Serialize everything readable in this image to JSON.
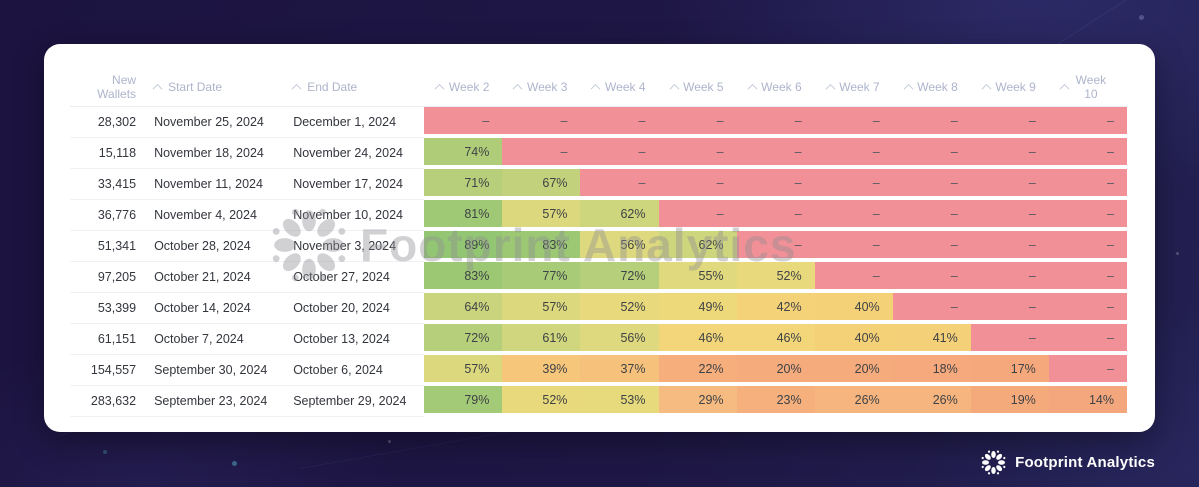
{
  "watermark": {
    "label": "Footprint Analytics",
    "icon": "footprint-starburst-icon"
  },
  "footer_brand": {
    "label": "Footprint Analytics",
    "icon": "footprint-starburst-icon"
  },
  "theme": {
    "empty_cell_color": "#f19096",
    "header_text_color": "#aeb4cb",
    "card_background": "#ffffff",
    "page_background": "#1e1745"
  },
  "table": {
    "dash": "–",
    "percent_suffix": "%",
    "columns": [
      {
        "label": "New Wallets",
        "kind": "wallets",
        "sortable": false
      },
      {
        "label": "Start Date",
        "kind": "date",
        "sortable": true
      },
      {
        "label": "End Date",
        "kind": "date",
        "sortable": true
      },
      {
        "label": "Week 2",
        "kind": "week",
        "sortable": true
      },
      {
        "label": "Week 3",
        "kind": "week",
        "sortable": true
      },
      {
        "label": "Week 4",
        "kind": "week",
        "sortable": true
      },
      {
        "label": "Week 5",
        "kind": "week",
        "sortable": true
      },
      {
        "label": "Week 6",
        "kind": "week",
        "sortable": true
      },
      {
        "label": "Week 7",
        "kind": "week",
        "sortable": true
      },
      {
        "label": "Week 8",
        "kind": "week",
        "sortable": true
      },
      {
        "label": "Week 9",
        "kind": "week",
        "sortable": true
      },
      {
        "label": "Week 10",
        "kind": "week",
        "sortable": true
      }
    ]
  },
  "chart_data": {
    "type": "heatmap",
    "title": "",
    "columns": [
      "Week 2",
      "Week 3",
      "Week 4",
      "Week 5",
      "Week 6",
      "Week 7",
      "Week 8",
      "Week 9",
      "Week 10"
    ],
    "value_unit": "percent",
    "legend": "none",
    "rows": [
      {
        "new_wallets": "28,302",
        "start_date": "November 25, 2024",
        "end_date": "December 1, 2024",
        "retention": [
          null,
          null,
          null,
          null,
          null,
          null,
          null,
          null,
          null
        ],
        "cell_colors": [
          "#f19096",
          "#f19096",
          "#f19096",
          "#f19096",
          "#f19096",
          "#f19096",
          "#f19096",
          "#f19096",
          "#f19096"
        ]
      },
      {
        "new_wallets": "15,118",
        "start_date": "November 18, 2024",
        "end_date": "November 24, 2024",
        "retention": [
          74,
          null,
          null,
          null,
          null,
          null,
          null,
          null,
          null
        ],
        "cell_colors": [
          "#afcd79",
          "#f19096",
          "#f19096",
          "#f19096",
          "#f19096",
          "#f19096",
          "#f19096",
          "#f19096",
          "#f19096"
        ]
      },
      {
        "new_wallets": "33,415",
        "start_date": "November 11, 2024",
        "end_date": "November 17, 2024",
        "retention": [
          71,
          67,
          null,
          null,
          null,
          null,
          null,
          null,
          null
        ],
        "cell_colors": [
          "#b7cf7b",
          "#c2d27c",
          "#f19096",
          "#f19096",
          "#f19096",
          "#f19096",
          "#f19096",
          "#f19096",
          "#f19096"
        ]
      },
      {
        "new_wallets": "36,776",
        "start_date": "November 4, 2024",
        "end_date": "November 10, 2024",
        "retention": [
          81,
          57,
          62,
          null,
          null,
          null,
          null,
          null,
          null
        ],
        "cell_colors": [
          "#9fc975",
          "#dcd87e",
          "#cdd57d",
          "#f19096",
          "#f19096",
          "#f19096",
          "#f19096",
          "#f19096",
          "#f19096"
        ]
      },
      {
        "new_wallets": "51,341",
        "start_date": "October 28, 2024",
        "end_date": "November 3, 2024",
        "retention": [
          89,
          83,
          56,
          62,
          null,
          null,
          null,
          null,
          null
        ],
        "cell_colors": [
          "#93c672",
          "#9cc874",
          "#ded97e",
          "#cdd57d",
          "#f19096",
          "#f19096",
          "#f19096",
          "#f19096",
          "#f19096"
        ]
      },
      {
        "new_wallets": "97,205",
        "start_date": "October 21, 2024",
        "end_date": "October 27, 2024",
        "retention": [
          83,
          77,
          72,
          55,
          52,
          null,
          null,
          null,
          null
        ],
        "cell_colors": [
          "#9cc874",
          "#a8cb77",
          "#b5cf7a",
          "#e0d97d",
          "#e8da7c",
          "#f19096",
          "#f19096",
          "#f19096",
          "#f19096"
        ]
      },
      {
        "new_wallets": "53,399",
        "start_date": "October 14, 2024",
        "end_date": "October 20, 2024",
        "retention": [
          64,
          57,
          52,
          49,
          42,
          40,
          null,
          null,
          null
        ],
        "cell_colors": [
          "#c9d47d",
          "#dcd87e",
          "#e8da7c",
          "#eed97a",
          "#f4d278",
          "#f4d077",
          "#f19096",
          "#f19096",
          "#f19096"
        ]
      },
      {
        "new_wallets": "61,151",
        "start_date": "October 7, 2024",
        "end_date": "October 13, 2024",
        "retention": [
          72,
          61,
          56,
          46,
          46,
          40,
          41,
          null,
          null
        ],
        "cell_colors": [
          "#b5cf7a",
          "#cfd67d",
          "#ded97e",
          "#f2d679",
          "#f2d679",
          "#f4d077",
          "#f4d178",
          "#f19096",
          "#f19096"
        ]
      },
      {
        "new_wallets": "154,557",
        "start_date": "September 30, 2024",
        "end_date": "October 6, 2024",
        "retention": [
          57,
          39,
          37,
          22,
          20,
          20,
          18,
          17,
          null
        ],
        "cell_colors": [
          "#dcd87e",
          "#f6c67b",
          "#f6c27b",
          "#f5ae7c",
          "#f5ab7c",
          "#f5ab7c",
          "#f5a97c",
          "#f5a87b",
          "#f19096"
        ]
      },
      {
        "new_wallets": "283,632",
        "start_date": "September 23, 2024",
        "end_date": "September 29, 2024",
        "retention": [
          79,
          52,
          53,
          29,
          23,
          26,
          26,
          19,
          14
        ],
        "cell_colors": [
          "#a3ca76",
          "#e8da7c",
          "#e6da7d",
          "#f6bb80",
          "#f5b07d",
          "#f6b57e",
          "#f6b57e",
          "#f5aa7c",
          "#f4a77c"
        ]
      }
    ]
  }
}
